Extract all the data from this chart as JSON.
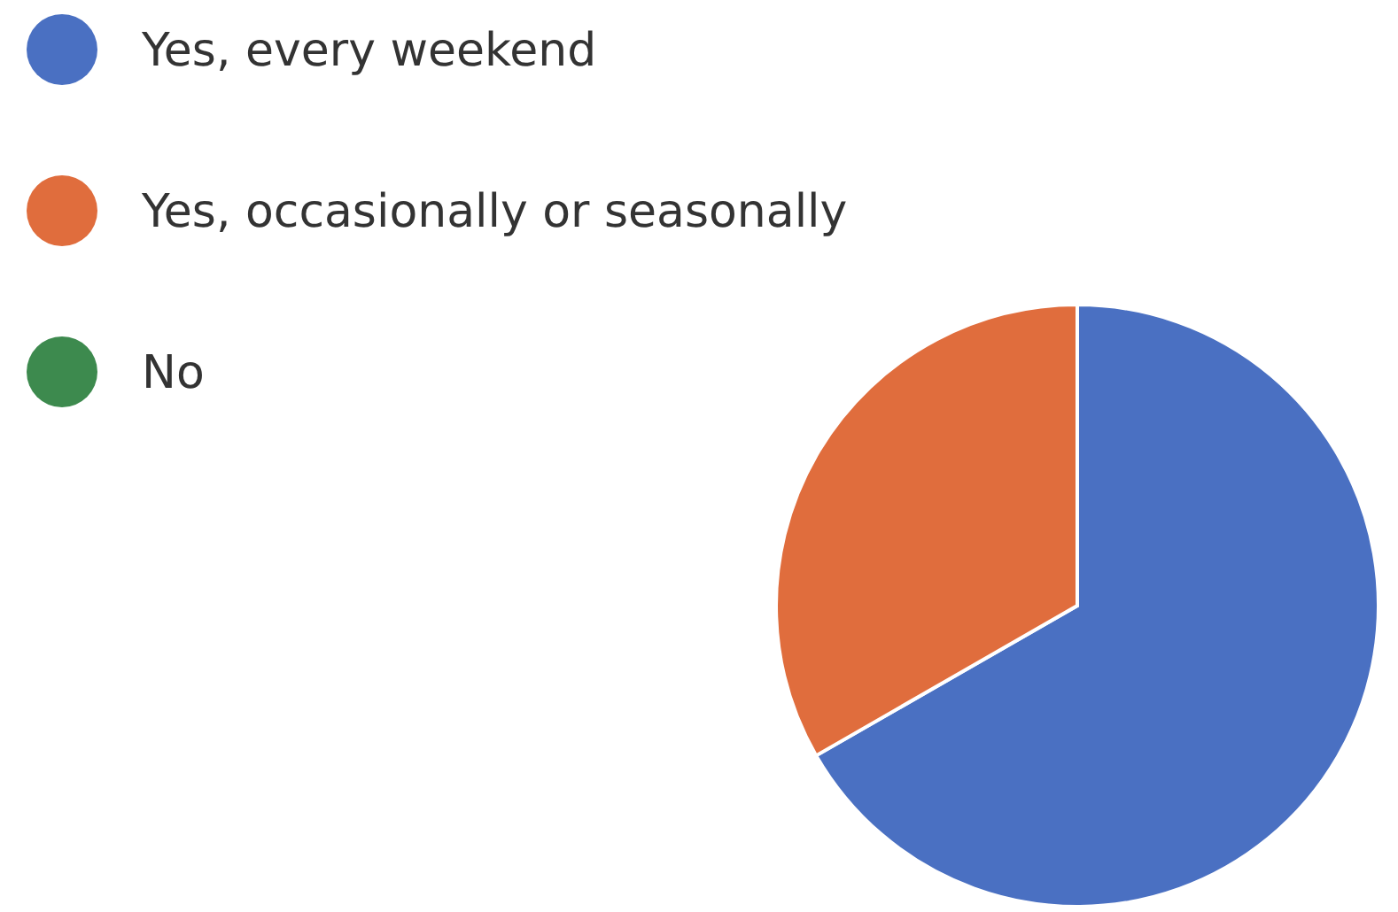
{
  "chart_data": {
    "type": "pie",
    "categories": [
      "Yes, every weekend",
      "Yes, occasionally or seasonally",
      "No"
    ],
    "values": [
      66.7,
      33.3,
      0
    ],
    "colors": [
      "#4a70c2",
      "#e06d3d",
      "#3d8a4e"
    ],
    "legend": "top left"
  }
}
